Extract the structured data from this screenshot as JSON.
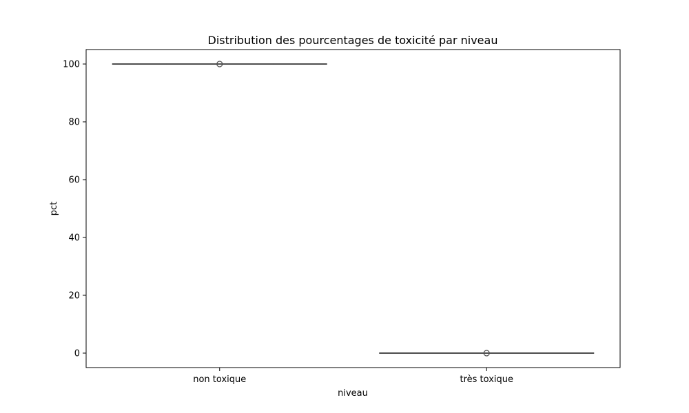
{
  "chart_data": {
    "type": "box",
    "title": "Distribution des pourcentages de toxicité par niveau",
    "xlabel": "niveau",
    "ylabel": "pct",
    "categories": [
      "non toxique",
      "très toxique"
    ],
    "boxes": [
      {
        "category": "non toxique",
        "min": 100,
        "q1": 100,
        "median": 100,
        "q3": 100,
        "max": 100,
        "outliers": [
          100
        ]
      },
      {
        "category": "très toxique",
        "min": 0,
        "q1": 0,
        "median": 0,
        "q3": 0,
        "max": 0,
        "outliers": [
          0
        ]
      }
    ],
    "ylim": [
      -5,
      105
    ],
    "yticks": [
      0,
      20,
      40,
      60,
      80,
      100
    ],
    "grid": false,
    "colors": {
      "box_line": "#4d4d4d",
      "outlier": "#4d4d4d",
      "axis": "#000000"
    }
  }
}
